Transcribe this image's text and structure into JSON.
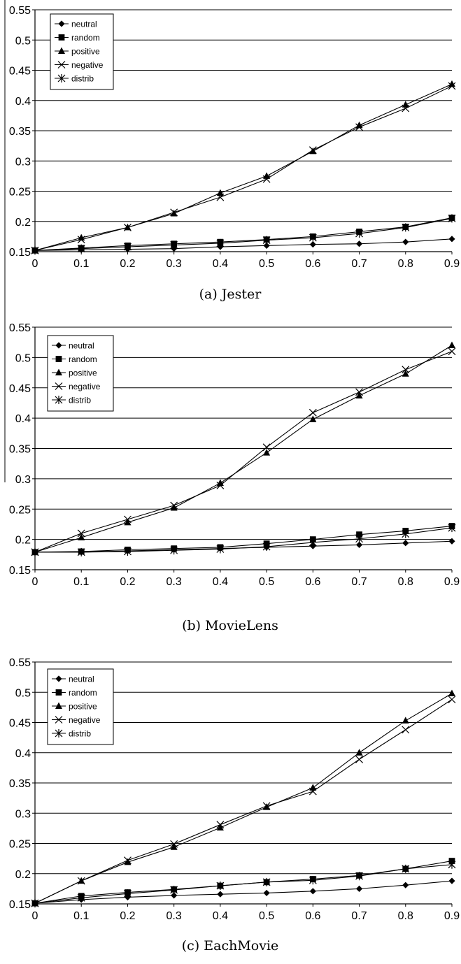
{
  "chart_data": [
    {
      "type": "line",
      "caption": "(a) Jester",
      "x": [
        0,
        0.1,
        0.2,
        0.3,
        0.4,
        0.5,
        0.6,
        0.7,
        0.8,
        0.9
      ],
      "x_tick_labels": [
        "0",
        "0.1",
        "0.2",
        "0.3",
        "0.4",
        "0.5",
        "0.6",
        "0.7",
        "0.8",
        "0.9"
      ],
      "y_tick_labels": [
        "0.15",
        "0.2",
        "0.25",
        "0.3",
        "0.35",
        "0.4",
        "0.45",
        "0.5",
        "0.55"
      ],
      "ylim": [
        0.15,
        0.55
      ],
      "grid": "horizontal",
      "legend": "top-left",
      "series": [
        {
          "name": "neutral",
          "marker": "diamond",
          "values": [
            0.152,
            0.153,
            0.154,
            0.155,
            0.158,
            0.16,
            0.162,
            0.163,
            0.166,
            0.171
          ]
        },
        {
          "name": "random",
          "marker": "square",
          "values": [
            0.152,
            0.156,
            0.16,
            0.163,
            0.166,
            0.17,
            0.175,
            0.183,
            0.191,
            0.206
          ]
        },
        {
          "name": "positive",
          "marker": "triangle",
          "values": [
            0.152,
            0.173,
            0.19,
            0.213,
            0.247,
            0.275,
            0.316,
            0.359,
            0.393,
            0.427
          ]
        },
        {
          "name": "negative",
          "marker": "x",
          "values": [
            0.152,
            0.17,
            0.19,
            0.215,
            0.24,
            0.27,
            0.318,
            0.356,
            0.387,
            0.424
          ]
        },
        {
          "name": "distrib",
          "marker": "asterisk",
          "values": [
            0.152,
            0.155,
            0.158,
            0.161,
            0.164,
            0.169,
            0.173,
            0.18,
            0.19,
            0.205
          ]
        }
      ]
    },
    {
      "type": "line",
      "caption": "(b) MovieLens",
      "x": [
        0,
        0.1,
        0.2,
        0.3,
        0.4,
        0.5,
        0.6,
        0.7,
        0.8,
        0.9
      ],
      "x_tick_labels": [
        "0",
        "0.1",
        "0.2",
        "0.3",
        "0.4",
        "0.5",
        "0.6",
        "0.7",
        "0.8",
        "0.9"
      ],
      "y_tick_labels": [
        "0.15",
        "0.2",
        "0.25",
        "0.3",
        "0.35",
        "0.4",
        "0.45",
        "0.5",
        "0.55"
      ],
      "ylim": [
        0.15,
        0.55
      ],
      "grid": "horizontal",
      "legend": "top-left",
      "series": [
        {
          "name": "neutral",
          "marker": "diamond",
          "values": [
            0.179,
            0.179,
            0.181,
            0.183,
            0.185,
            0.187,
            0.189,
            0.191,
            0.194,
            0.197
          ]
        },
        {
          "name": "random",
          "marker": "square",
          "values": [
            0.179,
            0.18,
            0.183,
            0.185,
            0.187,
            0.193,
            0.2,
            0.208,
            0.214,
            0.222
          ]
        },
        {
          "name": "positive",
          "marker": "triangle",
          "values": [
            0.179,
            0.203,
            0.228,
            0.252,
            0.293,
            0.343,
            0.398,
            0.437,
            0.473,
            0.52
          ]
        },
        {
          "name": "negative",
          "marker": "x",
          "values": [
            0.179,
            0.21,
            0.233,
            0.256,
            0.289,
            0.352,
            0.409,
            0.443,
            0.48,
            0.51
          ]
        },
        {
          "name": "distrib",
          "marker": "asterisk",
          "values": [
            0.179,
            0.179,
            0.18,
            0.182,
            0.184,
            0.188,
            0.195,
            0.201,
            0.209,
            0.219
          ]
        }
      ]
    },
    {
      "type": "line",
      "caption": "(c) EachMovie",
      "x": [
        0,
        0.1,
        0.2,
        0.3,
        0.4,
        0.5,
        0.6,
        0.7,
        0.8,
        0.9
      ],
      "x_tick_labels": [
        "0",
        "0.1",
        "0.2",
        "0.3",
        "0.4",
        "0.5",
        "0.6",
        "0.7",
        "0.8",
        "0.9"
      ],
      "y_tick_labels": [
        "0.15",
        "0.2",
        "0.25",
        "0.3",
        "0.35",
        "0.4",
        "0.45",
        "0.5",
        "0.55"
      ],
      "ylim": [
        0.15,
        0.55
      ],
      "grid": "horizontal",
      "legend": "top-left",
      "series": [
        {
          "name": "neutral",
          "marker": "diamond",
          "values": [
            0.151,
            0.157,
            0.161,
            0.164,
            0.166,
            0.168,
            0.171,
            0.175,
            0.181,
            0.188
          ]
        },
        {
          "name": "random",
          "marker": "square",
          "values": [
            0.151,
            0.163,
            0.169,
            0.174,
            0.18,
            0.186,
            0.191,
            0.197,
            0.208,
            0.221
          ]
        },
        {
          "name": "positive",
          "marker": "triangle",
          "values": [
            0.151,
            0.188,
            0.219,
            0.244,
            0.276,
            0.31,
            0.342,
            0.4,
            0.453,
            0.498
          ]
        },
        {
          "name": "negative",
          "marker": "x",
          "values": [
            0.151,
            0.188,
            0.222,
            0.249,
            0.281,
            0.312,
            0.336,
            0.389,
            0.438,
            0.488
          ]
        },
        {
          "name": "distrib",
          "marker": "asterisk",
          "values": [
            0.151,
            0.16,
            0.167,
            0.173,
            0.18,
            0.186,
            0.189,
            0.196,
            0.208,
            0.215
          ]
        }
      ]
    }
  ]
}
